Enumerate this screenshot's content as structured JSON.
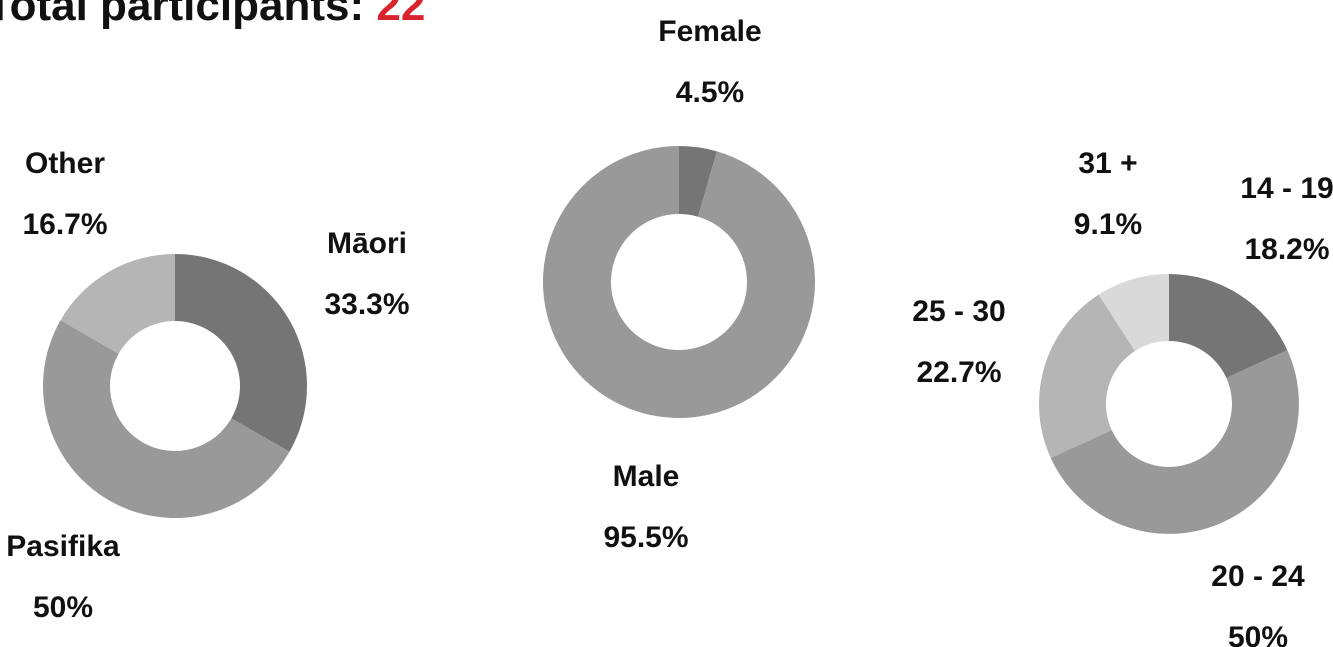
{
  "header": {
    "title": "Total participants:",
    "count": 22
  },
  "chart_data": [
    {
      "type": "pie",
      "categories": [
        "Māori",
        "Pasifika",
        "Other"
      ],
      "values": [
        33.3,
        50,
        16.7
      ],
      "value_labels": [
        "33.3%",
        "50%",
        "16.7%"
      ],
      "colors": [
        "#757575",
        "#999999",
        "#b5b5b5"
      ]
    },
    {
      "type": "pie",
      "categories": [
        "Female",
        "Male"
      ],
      "values": [
        4.5,
        95.5
      ],
      "value_labels": [
        "4.5%",
        "95.5%"
      ],
      "colors": [
        "#757575",
        "#999999"
      ]
    },
    {
      "type": "pie",
      "categories": [
        "14 - 19",
        "20 - 24",
        "25 - 30",
        "31 +"
      ],
      "values": [
        18.2,
        50,
        22.7,
        9.1
      ],
      "value_labels": [
        "18.2%",
        "50%",
        "22.7%",
        "9.1%"
      ],
      "colors": [
        "#757575",
        "#999999",
        "#b5b5b5",
        "#d9d9d9"
      ]
    }
  ]
}
